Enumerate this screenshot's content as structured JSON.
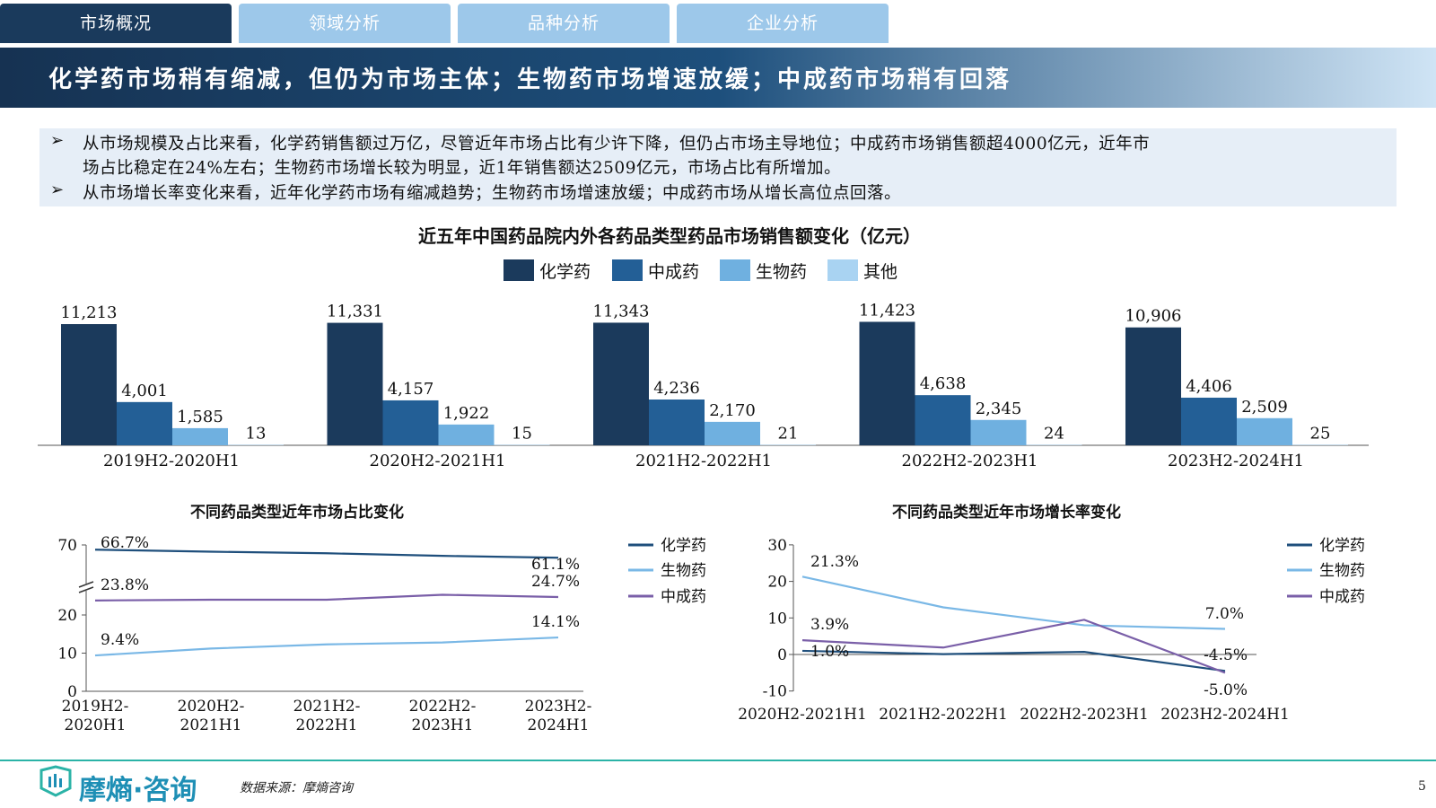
{
  "tabs": [
    {
      "label": "市场概况",
      "active": true
    },
    {
      "label": "领域分析",
      "active": false
    },
    {
      "label": "品种分析",
      "active": false
    },
    {
      "label": "企业分析",
      "active": false
    }
  ],
  "banner_title": "化学药市场稍有缩减，但仍为市场主体；生物药市场增速放缓；中成药市场稍有回落",
  "summary": {
    "bullet_symbol": "➢",
    "bullet1_line1": "从市场规模及占比来看，化学药销售额过万亿，尽管近年市场占比有少许下降，但仍占市场主导地位；中成药市场销售额超4000亿元，近年市",
    "bullet1_line2": "场占比稳定在24%左右；生物药市场增长较为明显，近1年销售额达2509亿元，市场占比有所增加。",
    "bullet2": "从市场增长率变化来看，近年化学药市场有缩减趋势；生物药市场增速放缓；中成药市场从增长高位点回落。"
  },
  "colors": {
    "chemical": "#1b3a5c",
    "tcm": "#235f96",
    "bio": "#6fb0e0",
    "other": "#a9d3f2",
    "line_chem": "#1f4f7c",
    "line_bio": "#7ab8e6",
    "line_tcm": "#7a5fa8",
    "tab_active": "#1a3a5c",
    "tab_inactive": "#9dc8ea"
  },
  "chart_data": [
    {
      "type": "bar",
      "title": "近五年中国药品院内外各药品类型药品市场销售额变化（亿元）",
      "categories": [
        "2019H2-2020H1",
        "2020H2-2021H1",
        "2021H2-2022H1",
        "2022H2-2023H1",
        "2023H2-2024H1"
      ],
      "series": [
        {
          "name": "化学药",
          "values": [
            11213,
            11331,
            11343,
            11423,
            10906
          ],
          "labels": [
            "11,213",
            "11,331",
            "11,343",
            "11,423",
            "10,906"
          ]
        },
        {
          "name": "中成药",
          "values": [
            4001,
            4157,
            4236,
            4638,
            4406
          ],
          "labels": [
            "4,001",
            "4,157",
            "4,236",
            "4,638",
            "4,406"
          ]
        },
        {
          "name": "生物药",
          "values": [
            1585,
            1922,
            2170,
            2345,
            2509
          ],
          "labels": [
            "1,585",
            "1,922",
            "2,170",
            "2,345",
            "2,509"
          ]
        },
        {
          "name": "其他",
          "values": [
            13,
            15,
            21,
            24,
            25
          ],
          "labels": [
            "13",
            "15",
            "21",
            "24",
            "25"
          ]
        }
      ],
      "legend_position": "top-center"
    },
    {
      "type": "line",
      "title": "不同药品类型近年市场占比变化",
      "categories": [
        "2019H2-2020H1",
        "2020H2-2021H1",
        "2021H2-2022H1",
        "2022H2-2023H1",
        "2023H2-2024H1"
      ],
      "category_lines": [
        [
          "2019H2-",
          "2020H1"
        ],
        [
          "2020H2-",
          "2021H1"
        ],
        [
          "2021H2-",
          "2022H1"
        ],
        [
          "2022H2-",
          "2023H1"
        ],
        [
          "2023H2-",
          "2024H1"
        ]
      ],
      "y_ticks": [
        "0",
        "10",
        "20",
        "70"
      ],
      "y_axis_break": true,
      "series": [
        {
          "name": "化学药",
          "values": [
            66.7,
            65.3,
            64.2,
            62.4,
            61.1
          ]
        },
        {
          "name": "生物药",
          "values": [
            9.4,
            11.2,
            12.3,
            12.8,
            14.1
          ]
        },
        {
          "name": "中成药",
          "values": [
            23.8,
            24.0,
            24.0,
            25.3,
            24.7
          ]
        }
      ],
      "annotations": [
        "66.7%",
        "23.8%",
        "9.4%",
        "61.1%",
        "24.7%",
        "14.1%"
      ],
      "legend_position": "right"
    },
    {
      "type": "line",
      "title": "不同药品类型近年市场增长率变化",
      "categories": [
        "2020H2-2021H1",
        "2021H2-2022H1",
        "2022H2-2023H1",
        "2023H2-2024H1"
      ],
      "ylim": [
        -10,
        30
      ],
      "y_ticks": [
        "-10",
        "0",
        "10",
        "20",
        "30"
      ],
      "series": [
        {
          "name": "化学药",
          "values": [
            1.0,
            0.1,
            0.7,
            -4.5
          ]
        },
        {
          "name": "生物药",
          "values": [
            21.3,
            12.9,
            8.0,
            7.0
          ]
        },
        {
          "name": "中成药",
          "values": [
            3.9,
            1.9,
            9.5,
            -5.0
          ]
        }
      ],
      "annotations": [
        "21.3%",
        "3.9%",
        "1.0%",
        "7.0%",
        "-4.5%",
        "-5.0%"
      ],
      "legend_position": "right"
    }
  ],
  "footer": {
    "logo": "摩熵·咨询",
    "source": "数据来源：摩熵咨询",
    "page": "5"
  }
}
